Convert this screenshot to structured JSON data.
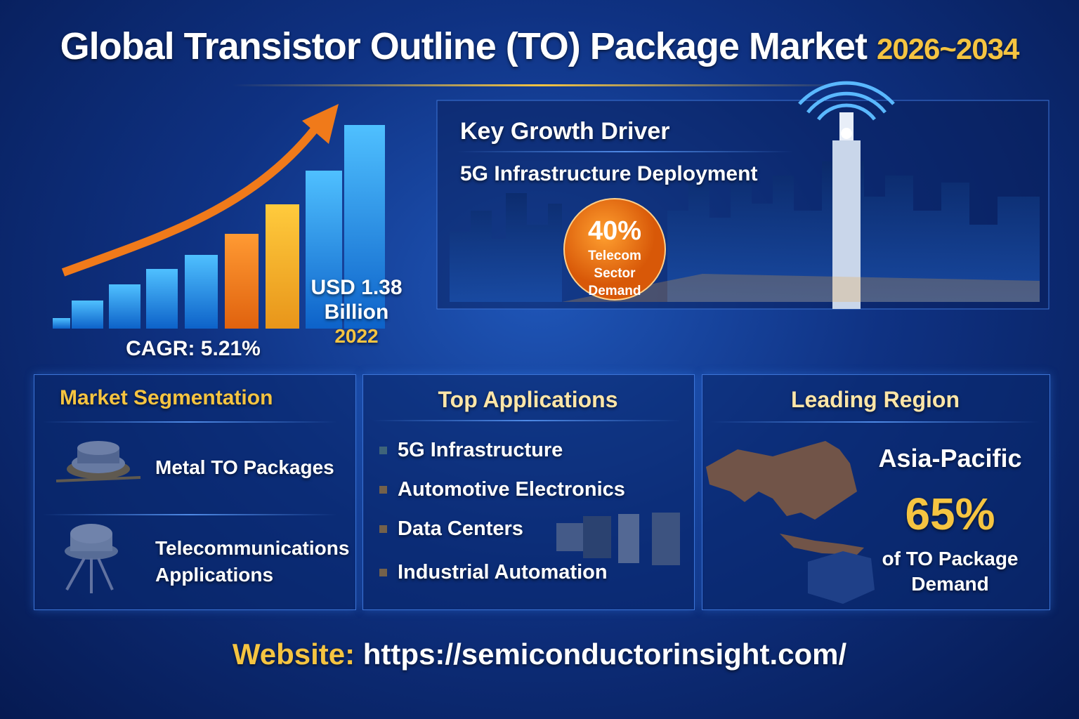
{
  "header": {
    "title": "Global Transistor Outline (TO) Package Market",
    "years": "2026~2034"
  },
  "market_size": {
    "value": "USD 1.38",
    "unit": "Billion",
    "year": "2022",
    "cagr": "CAGR: 5.21%"
  },
  "growth_driver": {
    "heading": "Key Growth Driver",
    "driver": "5G Infrastructure Deployment",
    "share": "40%",
    "share_label": "Telecom Sector Demand"
  },
  "segmentation": {
    "heading": "Market Segmentation",
    "items": [
      "Metal TO Packages",
      "Telecommunications Applications"
    ]
  },
  "applications": {
    "heading": "Top Applications",
    "items": [
      "5G Infrastructure",
      "Automotive Electronics",
      "Data Centers",
      "Industrial Automation"
    ]
  },
  "region": {
    "heading": "Leading Region",
    "name": "Asia-Pacific",
    "share": "65%",
    "share_label": "of TO Package Demand"
  },
  "footer": {
    "label": "Website:",
    "url": "https://semiconductorinsight.com/"
  }
}
